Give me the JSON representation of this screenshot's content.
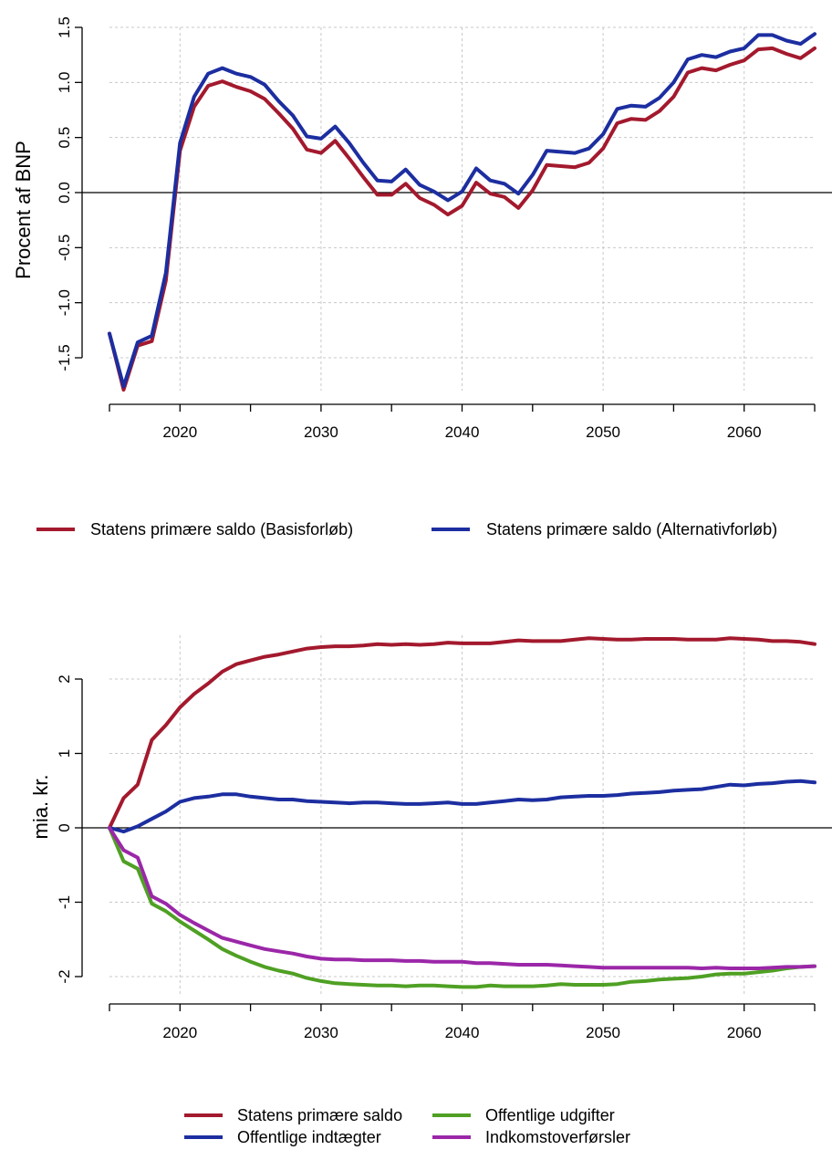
{
  "chart_data": [
    {
      "type": "line",
      "title": "",
      "xlabel": "",
      "ylabel": "Procent af BNP",
      "xlim": [
        2015,
        2065
      ],
      "ylim": [
        -1.8,
        1.5
      ],
      "x_ticks": [
        2020,
        2030,
        2040,
        2050,
        2060
      ],
      "x_tick_labels": [
        "2020",
        "2030",
        "2040",
        "2050",
        "2060"
      ],
      "y_ticks": [
        -1.5,
        -1.0,
        -0.5,
        0.0,
        0.5,
        1.0,
        1.5
      ],
      "y_tick_labels": [
        "-1.5",
        "-1.0",
        "-0.5",
        "0.0",
        "0.5",
        "1.0",
        "1.5"
      ],
      "grid": true,
      "zero_line": true,
      "legend_position": "bottom",
      "x": [
        2015,
        2016,
        2017,
        2018,
        2019,
        2020,
        2021,
        2022,
        2023,
        2024,
        2025,
        2026,
        2027,
        2028,
        2029,
        2030,
        2031,
        2032,
        2033,
        2034,
        2035,
        2036,
        2037,
        2038,
        2039,
        2040,
        2041,
        2042,
        2043,
        2044,
        2045,
        2046,
        2047,
        2048,
        2049,
        2050,
        2051,
        2052,
        2053,
        2054,
        2055,
        2056,
        2057,
        2058,
        2059,
        2060,
        2061,
        2062,
        2063,
        2064,
        2065
      ],
      "series": [
        {
          "name": "Statens primære saldo (Basisforløb)",
          "color": "#a3192d",
          "values": [
            -1.28,
            -1.79,
            -1.39,
            -1.35,
            -0.8,
            0.38,
            0.78,
            0.97,
            1.01,
            0.96,
            0.92,
            0.85,
            0.72,
            0.58,
            0.39,
            0.36,
            0.47,
            0.31,
            0.14,
            -0.02,
            -0.02,
            0.08,
            -0.05,
            -0.11,
            -0.2,
            -0.12,
            0.09,
            -0.01,
            -0.04,
            -0.14,
            0.02,
            0.25,
            0.24,
            0.23,
            0.27,
            0.4,
            0.63,
            0.67,
            0.66,
            0.74,
            0.87,
            1.09,
            1.13,
            1.11,
            1.16,
            1.2,
            1.3,
            1.31,
            1.26,
            1.22,
            1.31
          ]
        },
        {
          "name": "Statens primære saldo (Alternativforløb)",
          "color": "#1c2ea0",
          "values": [
            -1.28,
            -1.76,
            -1.36,
            -1.3,
            -0.73,
            0.45,
            0.87,
            1.08,
            1.13,
            1.08,
            1.05,
            0.98,
            0.83,
            0.7,
            0.51,
            0.49,
            0.6,
            0.45,
            0.27,
            0.11,
            0.1,
            0.21,
            0.07,
            0.01,
            -0.07,
            0.01,
            0.22,
            0.11,
            0.08,
            -0.01,
            0.16,
            0.38,
            0.37,
            0.36,
            0.4,
            0.53,
            0.76,
            0.79,
            0.78,
            0.86,
            1.0,
            1.21,
            1.25,
            1.23,
            1.28,
            1.31,
            1.43,
            1.43,
            1.38,
            1.35,
            1.44
          ]
        }
      ]
    },
    {
      "type": "line",
      "title": "",
      "xlabel": "",
      "ylabel": "mia. kr.",
      "xlim": [
        2015,
        2065
      ],
      "ylim": [
        -2.2,
        2.6
      ],
      "x_ticks": [
        2020,
        2030,
        2040,
        2050,
        2060
      ],
      "x_tick_labels": [
        "2020",
        "2030",
        "2040",
        "2050",
        "2060"
      ],
      "y_ticks": [
        -2,
        -1,
        0,
        1,
        2
      ],
      "y_tick_labels": [
        "-2",
        "-1",
        "0",
        "1",
        "2"
      ],
      "grid": true,
      "zero_line": true,
      "legend_position": "bottom",
      "x": [
        2015,
        2016,
        2017,
        2018,
        2019,
        2020,
        2021,
        2022,
        2023,
        2024,
        2025,
        2026,
        2027,
        2028,
        2029,
        2030,
        2031,
        2032,
        2033,
        2034,
        2035,
        2036,
        2037,
        2038,
        2039,
        2040,
        2041,
        2042,
        2043,
        2044,
        2045,
        2046,
        2047,
        2048,
        2049,
        2050,
        2051,
        2052,
        2053,
        2054,
        2055,
        2056,
        2057,
        2058,
        2059,
        2060,
        2061,
        2062,
        2063,
        2064,
        2065
      ],
      "series": [
        {
          "name": "Statens primære saldo",
          "color": "#a3192d",
          "values": [
            0.0,
            0.4,
            0.58,
            1.18,
            1.38,
            1.62,
            1.8,
            1.94,
            2.1,
            2.2,
            2.25,
            2.3,
            2.33,
            2.37,
            2.41,
            2.43,
            2.44,
            2.44,
            2.45,
            2.47,
            2.46,
            2.47,
            2.46,
            2.47,
            2.49,
            2.48,
            2.48,
            2.48,
            2.5,
            2.52,
            2.51,
            2.51,
            2.51,
            2.53,
            2.55,
            2.54,
            2.53,
            2.53,
            2.54,
            2.54,
            2.54,
            2.53,
            2.53,
            2.53,
            2.55,
            2.54,
            2.53,
            2.51,
            2.51,
            2.5,
            2.47
          ]
        },
        {
          "name": "Offentlige indtægter",
          "color": "#1c2ea0",
          "values": [
            0.0,
            -0.05,
            0.02,
            0.12,
            0.22,
            0.35,
            0.4,
            0.42,
            0.45,
            0.45,
            0.42,
            0.4,
            0.38,
            0.38,
            0.36,
            0.35,
            0.34,
            0.33,
            0.34,
            0.34,
            0.33,
            0.32,
            0.32,
            0.33,
            0.34,
            0.32,
            0.32,
            0.34,
            0.36,
            0.38,
            0.37,
            0.38,
            0.41,
            0.42,
            0.43,
            0.43,
            0.44,
            0.46,
            0.47,
            0.48,
            0.5,
            0.51,
            0.52,
            0.55,
            0.58,
            0.57,
            0.59,
            0.6,
            0.62,
            0.63,
            0.61
          ]
        },
        {
          "name": "Offentlige udgifter",
          "color": "#4fa023",
          "values": [
            0.0,
            -0.45,
            -0.55,
            -1.02,
            -1.12,
            -1.26,
            -1.38,
            -1.5,
            -1.63,
            -1.72,
            -1.8,
            -1.87,
            -1.92,
            -1.96,
            -2.02,
            -2.06,
            -2.09,
            -2.1,
            -2.11,
            -2.12,
            -2.12,
            -2.13,
            -2.12,
            -2.12,
            -2.13,
            -2.14,
            -2.14,
            -2.12,
            -2.13,
            -2.13,
            -2.13,
            -2.12,
            -2.1,
            -2.11,
            -2.11,
            -2.11,
            -2.1,
            -2.07,
            -2.06,
            -2.04,
            -2.03,
            -2.02,
            -2.0,
            -1.97,
            -1.96,
            -1.96,
            -1.94,
            -1.92,
            -1.89,
            -1.87,
            -1.86
          ]
        },
        {
          "name": "Indkomstoverførsler",
          "color": "#9b27a8",
          "values": [
            0.0,
            -0.3,
            -0.4,
            -0.92,
            -1.02,
            -1.17,
            -1.28,
            -1.38,
            -1.48,
            -1.53,
            -1.58,
            -1.63,
            -1.66,
            -1.69,
            -1.73,
            -1.76,
            -1.77,
            -1.77,
            -1.78,
            -1.78,
            -1.78,
            -1.79,
            -1.79,
            -1.8,
            -1.8,
            -1.8,
            -1.82,
            -1.82,
            -1.83,
            -1.84,
            -1.84,
            -1.84,
            -1.85,
            -1.86,
            -1.87,
            -1.88,
            -1.88,
            -1.88,
            -1.88,
            -1.88,
            -1.88,
            -1.88,
            -1.89,
            -1.88,
            -1.89,
            -1.89,
            -1.89,
            -1.88,
            -1.87,
            -1.87,
            -1.86
          ]
        }
      ]
    }
  ]
}
